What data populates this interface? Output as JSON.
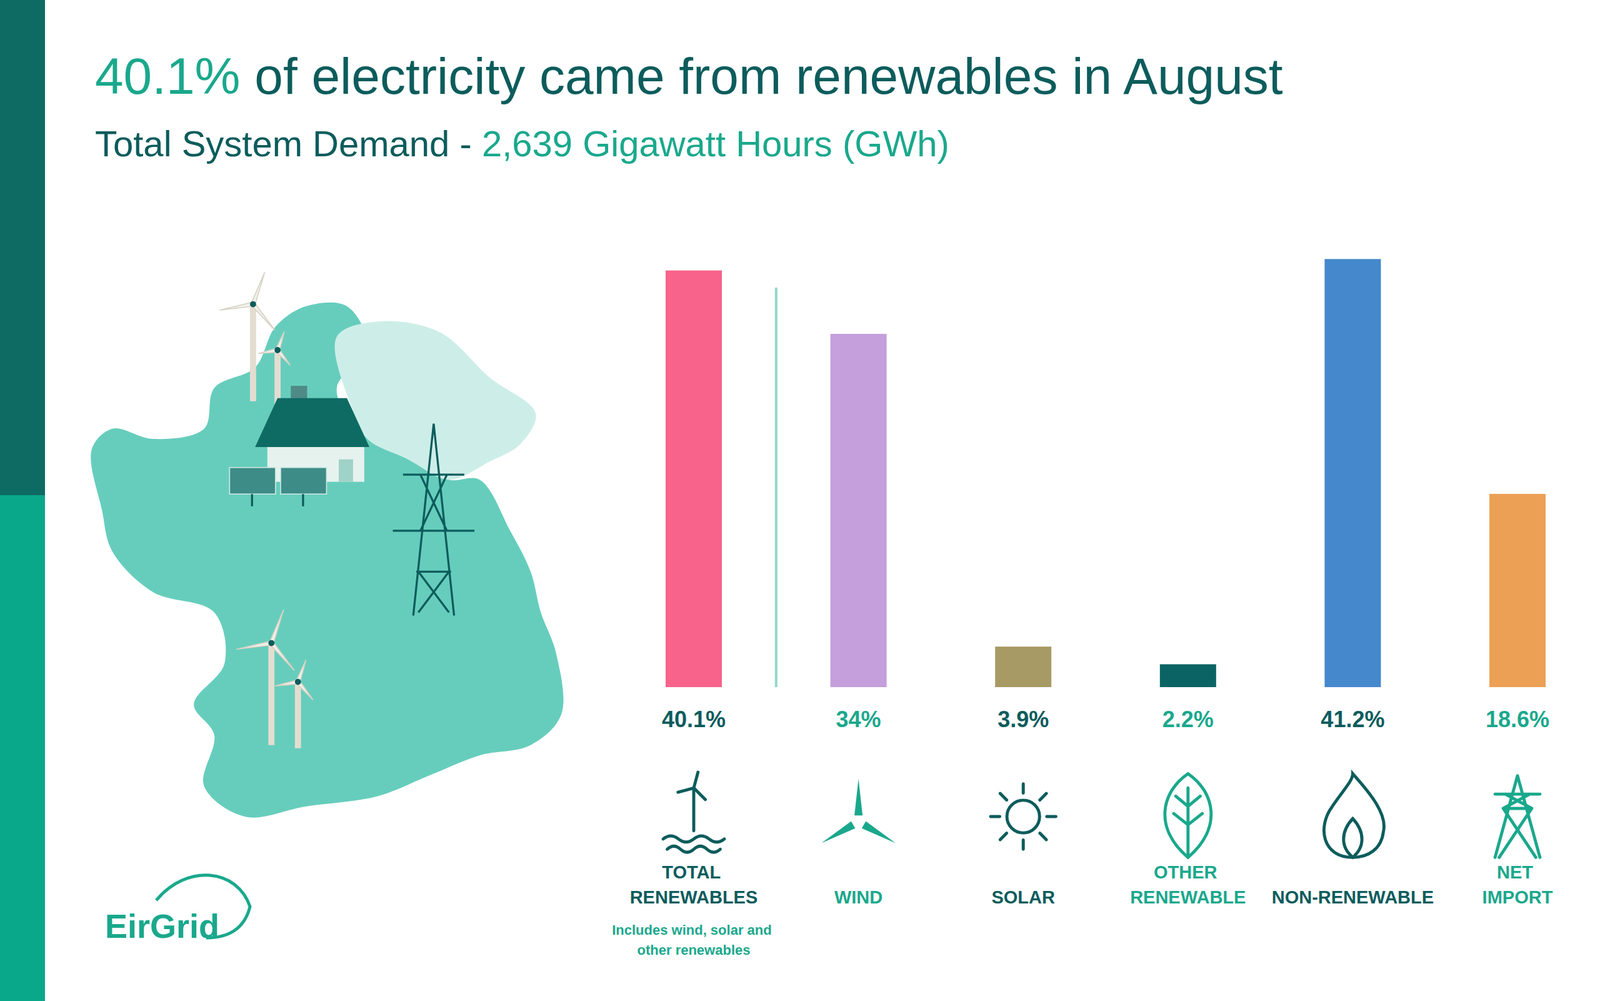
{
  "chart_data": {
    "type": "bar",
    "title": "40.1% of electricity came from renewables in August",
    "subtitle": "Total System Demand - 2,639 Gigawatt Hours (GWh)",
    "categories": [
      "TOTAL RENEWABLES",
      "WIND",
      "SOLAR",
      "OTHER RENEWABLE",
      "NON-RENEWABLE",
      "NET IMPORT"
    ],
    "values": [
      40.1,
      34,
      3.9,
      2.2,
      41.2,
      18.6
    ],
    "value_labels": [
      "40.1%",
      "34%",
      "3.9%",
      "2.2%",
      "41.2%",
      "18.6%"
    ],
    "colors": [
      "#f7638a",
      "#c49fdb",
      "#a89a64",
      "#0b6463",
      "#4588cc",
      "#eba055"
    ],
    "ylim": [
      0,
      42
    ],
    "tick_labels": false,
    "grid": false,
    "data_labels": true,
    "annotations": [
      "Includes wind, solar and other renewables"
    ]
  },
  "brand": "EirGrid"
}
